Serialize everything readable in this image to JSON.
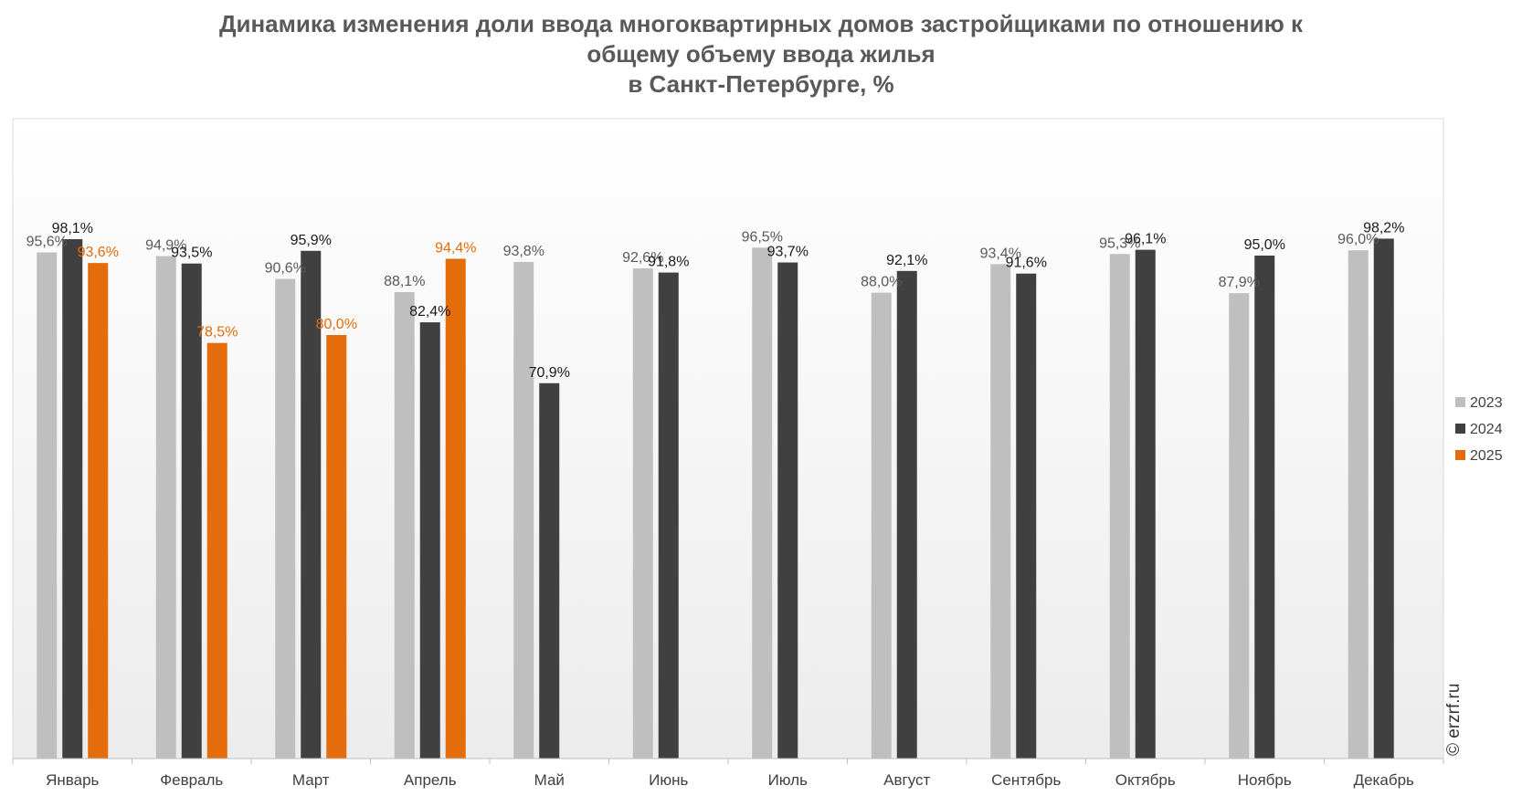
{
  "chart_data": {
    "type": "bar",
    "title_lines": [
      "Динамика изменения доли ввода многоквартирных домов застройщиками по отношению к",
      "общему объему ввода жилья",
      "в Санкт-Петербурге, %"
    ],
    "categories": [
      "Январь",
      "Февраль",
      "Март",
      "Апрель",
      "Май",
      "Июнь",
      "Июль",
      "Август",
      "Сентябрь",
      "Октябрь",
      "Ноябрь",
      "Декабрь"
    ],
    "series": [
      {
        "name": "2023",
        "color": "#bfbfbf",
        "label_color": "#595959",
        "values": [
          95.6,
          94.9,
          90.6,
          88.1,
          93.8,
          92.6,
          96.5,
          88.0,
          93.4,
          95.3,
          87.9,
          96.0
        ],
        "labels": [
          "95,6%",
          "94,9%",
          "90,6%",
          "88,1%",
          "93,8%",
          "92,6%",
          "96,5%",
          "88,0%",
          "93,4%",
          "95,3%",
          "87,9%",
          "96,0%"
        ]
      },
      {
        "name": "2024",
        "color": "#404040",
        "label_color": "#1a1a1a",
        "values": [
          98.1,
          93.5,
          95.9,
          82.4,
          70.9,
          91.8,
          93.7,
          92.1,
          91.6,
          96.1,
          95.0,
          98.2
        ],
        "labels": [
          "98,1%",
          "93,5%",
          "95,9%",
          "82,4%",
          "70,9%",
          "91,8%",
          "93,7%",
          "92,1%",
          "91,6%",
          "96,1%",
          "95,0%",
          "98,2%"
        ]
      },
      {
        "name": "2025",
        "color": "#e46c0a",
        "label_color": "#e46c0a",
        "values": [
          93.6,
          78.5,
          80.0,
          94.4,
          null,
          null,
          null,
          null,
          null,
          null,
          null,
          null
        ],
        "labels": [
          "93,6%",
          "78,5%",
          "80,0%",
          "94,4%",
          null,
          null,
          null,
          null,
          null,
          null,
          null,
          null
        ]
      }
    ],
    "legend_position": "right",
    "grid": false,
    "watermark": "© erzrf.ru"
  }
}
